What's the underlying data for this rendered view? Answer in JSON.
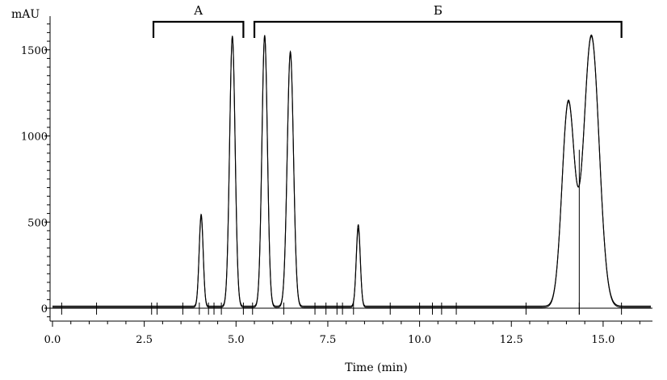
{
  "chart_data": {
    "type": "line",
    "title": "",
    "xlabel": "Time (min)",
    "ylabel": "mAU",
    "xlim": [
      0,
      16.3
    ],
    "ylim": [
      -60,
      1700
    ],
    "x_ticks": [
      0.0,
      2.5,
      5.0,
      7.5,
      10.0,
      12.5,
      15.0
    ],
    "x_tick_labels": [
      "0.0",
      "2.5",
      "5.0",
      "7.5",
      "10.0",
      "12.5",
      "15.0"
    ],
    "y_ticks": [
      0,
      500,
      1000,
      1500
    ],
    "y_tick_labels": [
      "0",
      "500",
      "1000",
      "1500"
    ],
    "grid": false,
    "legend": "none",
    "series": [
      {
        "peaks": [
          {
            "rt": 4.05,
            "height": 540,
            "width": 0.055
          },
          {
            "rt": 4.9,
            "height": 1575,
            "width": 0.075
          },
          {
            "rt": 5.78,
            "height": 1580,
            "width": 0.075
          },
          {
            "rt": 6.48,
            "height": 1485,
            "width": 0.085
          },
          {
            "rt": 8.33,
            "height": 480,
            "width": 0.055
          },
          {
            "rt": 14.05,
            "height": 1185,
            "width": 0.17
          },
          {
            "rt": 14.68,
            "height": 1580,
            "width": 0.21
          }
        ],
        "baseline": 5
      },
      {
        "peaks": [
          {
            "rt": 4.05,
            "height": 520,
            "width": 0.055
          },
          {
            "rt": 4.9,
            "height": 1560,
            "width": 0.075
          },
          {
            "rt": 5.78,
            "height": 1565,
            "width": 0.075
          },
          {
            "rt": 6.48,
            "height": 1470,
            "width": 0.085
          },
          {
            "rt": 8.33,
            "height": 450,
            "width": 0.055
          },
          {
            "rt": 14.05,
            "height": 1170,
            "width": 0.17
          },
          {
            "rt": 14.68,
            "height": 1565,
            "width": 0.21
          }
        ],
        "baseline": 12
      }
    ],
    "annotations": [
      {
        "label": "А",
        "x_start": 2.75,
        "x_end": 5.2
      },
      {
        "label": "Б",
        "x_start": 5.5,
        "x_end": 15.5
      }
    ],
    "integration_markers_x": [
      0.25,
      1.2,
      2.7,
      2.85,
      3.55,
      4.0,
      4.25,
      4.4,
      4.6,
      5.2,
      5.45,
      6.3,
      7.15,
      7.45,
      7.75,
      7.9,
      8.2,
      9.2,
      10.0,
      10.35,
      10.6,
      11.0,
      12.9,
      14.35,
      15.5
    ],
    "cut_line_x": 14.35,
    "axis_color": "#000000",
    "trace_color": "#000000"
  }
}
